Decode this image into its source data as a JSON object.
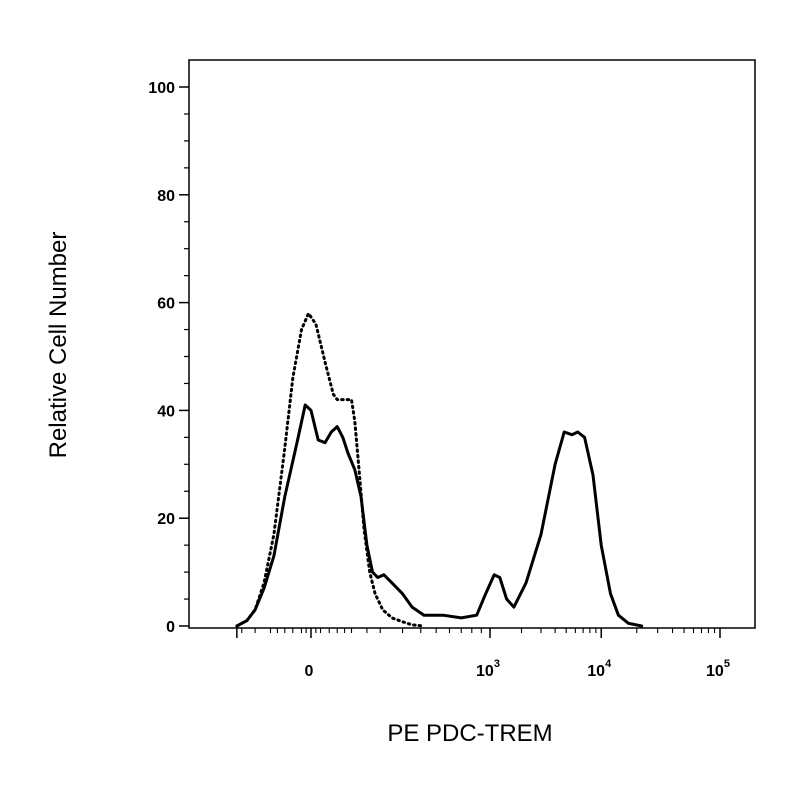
{
  "chart_data": {
    "type": "line",
    "xlabel": "PE PDC-TREM",
    "ylabel": "Relative Cell Number",
    "x_scale": "biexponential",
    "ylim": [
      0,
      105
    ],
    "y_ticks": [
      0,
      20,
      40,
      60,
      80,
      100
    ],
    "y_tick_labels": [
      "0",
      "20",
      "40",
      "60",
      "80",
      "100"
    ],
    "x_ticks": [
      {
        "value": 0,
        "base": "0",
        "exp": ""
      },
      {
        "value": 1000,
        "base": "10",
        "exp": "3"
      },
      {
        "value": 10000,
        "base": "10",
        "exp": "4"
      },
      {
        "value": 100000,
        "base": "10",
        "exp": "5"
      }
    ],
    "grid": false,
    "legend": "none",
    "colors": {
      "line": "#000000"
    },
    "series": [
      {
        "style": "solid",
        "points": [
          [
            -220,
            0
          ],
          [
            -180,
            1
          ],
          [
            -150,
            3
          ],
          [
            -120,
            7
          ],
          [
            -90,
            13
          ],
          [
            -60,
            24
          ],
          [
            -30,
            34
          ],
          [
            -12,
            41
          ],
          [
            0,
            40
          ],
          [
            15,
            34.5
          ],
          [
            30,
            34
          ],
          [
            45,
            36
          ],
          [
            60,
            37
          ],
          [
            75,
            35
          ],
          [
            90,
            32
          ],
          [
            110,
            29
          ],
          [
            130,
            24
          ],
          [
            150,
            15
          ],
          [
            170,
            10
          ],
          [
            190,
            9
          ],
          [
            215,
            9.5
          ],
          [
            250,
            8
          ],
          [
            300,
            6
          ],
          [
            350,
            3.5
          ],
          [
            420,
            2
          ],
          [
            550,
            2
          ],
          [
            700,
            1.5
          ],
          [
            850,
            2
          ],
          [
            950,
            6
          ],
          [
            1100,
            9.5
          ],
          [
            1250,
            9
          ],
          [
            1450,
            5
          ],
          [
            1700,
            3.5
          ],
          [
            2200,
            8
          ],
          [
            3000,
            17
          ],
          [
            4000,
            30
          ],
          [
            4800,
            36
          ],
          [
            5600,
            35.5
          ],
          [
            6300,
            36
          ],
          [
            7200,
            35
          ],
          [
            8500,
            28
          ],
          [
            10000,
            15
          ],
          [
            12000,
            6
          ],
          [
            14000,
            2
          ],
          [
            17000,
            0.5
          ],
          [
            22000,
            0
          ]
        ]
      },
      {
        "style": "dotted",
        "points": [
          [
            -220,
            0
          ],
          [
            -180,
            1
          ],
          [
            -150,
            3
          ],
          [
            -120,
            8
          ],
          [
            -90,
            17
          ],
          [
            -60,
            33
          ],
          [
            -40,
            46
          ],
          [
            -20,
            55
          ],
          [
            -5,
            58
          ],
          [
            10,
            56
          ],
          [
            30,
            49
          ],
          [
            50,
            43
          ],
          [
            60,
            42
          ],
          [
            80,
            42
          ],
          [
            100,
            42
          ],
          [
            110,
            38
          ],
          [
            125,
            28
          ],
          [
            140,
            18
          ],
          [
            160,
            10
          ],
          [
            180,
            6
          ],
          [
            210,
            3
          ],
          [
            250,
            1.5
          ],
          [
            300,
            0.8
          ],
          [
            350,
            0.2
          ],
          [
            420,
            0
          ]
        ]
      }
    ]
  }
}
